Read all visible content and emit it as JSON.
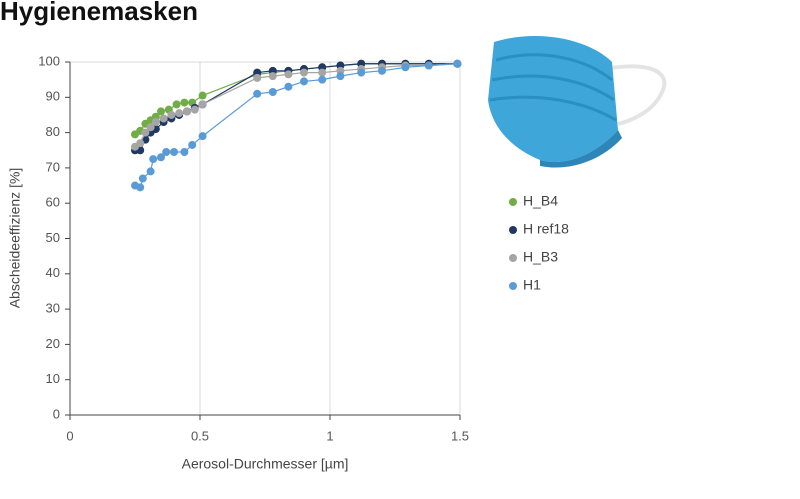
{
  "chart_data": {
    "type": "scatter",
    "title": "Hygienemasken",
    "x_label": "Aerosol-Durchmesser [µm]",
    "y_label": "Abscheideeffizienz [%]",
    "xlim": [
      0,
      1.5
    ],
    "xticks": [
      0,
      0.5,
      1,
      1.5
    ],
    "ylim": [
      0,
      100
    ],
    "yticks": [
      0,
      10,
      20,
      30,
      40,
      50,
      60,
      70,
      80,
      90,
      100
    ],
    "grid": "x",
    "series": [
      {
        "name": "H_B4",
        "color": "#70ad47",
        "x": [
          0.25,
          0.27,
          0.29,
          0.31,
          0.33,
          0.35,
          0.38,
          0.41,
          0.44,
          0.47,
          0.51,
          0.72,
          0.78,
          0.84,
          0.9,
          0.97,
          1.04,
          1.12,
          1.2,
          1.29,
          1.38,
          1.49
        ],
        "values": [
          79.5,
          80.5,
          82.5,
          83.5,
          84.5,
          86,
          86.5,
          88,
          88.5,
          88.5,
          90.5,
          96.5,
          97,
          97.5,
          98,
          98.5,
          99,
          99.5,
          99.5,
          99.5,
          99.5,
          99.5
        ]
      },
      {
        "name": "H ref18",
        "color": "#1f3864",
        "x": [
          0.25,
          0.26,
          0.27,
          0.29,
          0.31,
          0.33,
          0.36,
          0.39,
          0.42,
          0.45,
          0.48,
          0.51,
          0.72,
          0.78,
          0.84,
          0.9,
          0.97,
          1.04,
          1.12,
          1.2,
          1.29,
          1.38,
          1.49
        ],
        "values": [
          75,
          76,
          75,
          78,
          80,
          81,
          83,
          84,
          85,
          86,
          87,
          88,
          97,
          97.5,
          97.5,
          98,
          98.5,
          99,
          99.5,
          99.5,
          99.5,
          99.5,
          99.5
        ]
      },
      {
        "name": "H_B3",
        "color": "#a5a5a5",
        "x": [
          0.25,
          0.27,
          0.29,
          0.31,
          0.33,
          0.36,
          0.39,
          0.42,
          0.45,
          0.48,
          0.51,
          0.72,
          0.78,
          0.84,
          0.9,
          0.97,
          1.04,
          1.12,
          1.2,
          1.29,
          1.38,
          1.49
        ],
        "values": [
          76,
          77,
          80,
          81.5,
          83,
          84,
          85,
          85.5,
          86,
          86.5,
          88,
          95.5,
          96,
          96.5,
          97,
          97,
          97.5,
          98,
          98.5,
          99,
          99,
          99.5
        ]
      },
      {
        "name": "H1",
        "color": "#5b9bd5",
        "x": [
          0.25,
          0.27,
          0.28,
          0.31,
          0.32,
          0.35,
          0.37,
          0.4,
          0.44,
          0.47,
          0.51,
          0.72,
          0.78,
          0.84,
          0.9,
          0.97,
          1.04,
          1.12,
          1.2,
          1.29,
          1.38,
          1.49
        ],
        "values": [
          65,
          64.5,
          67,
          69,
          72.5,
          73,
          74.5,
          74.5,
          74.5,
          76.5,
          79,
          91,
          91.5,
          93,
          94.5,
          95,
          96,
          97,
          97.5,
          98.5,
          99,
          99.5
        ]
      }
    ]
  }
}
